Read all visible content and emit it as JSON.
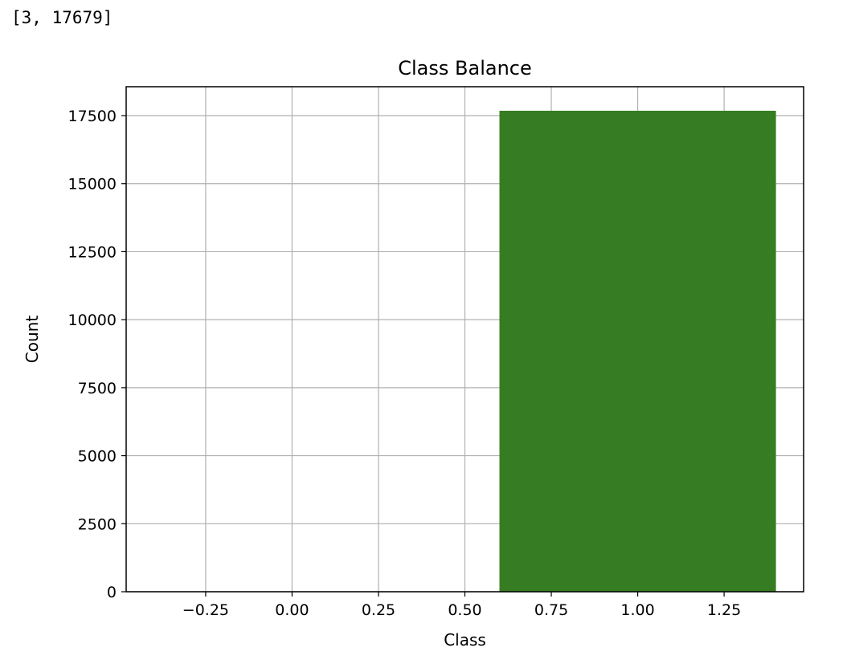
{
  "output": {
    "text": "[3, 17679]"
  },
  "chart_data": {
    "type": "bar",
    "title": "Class Balance",
    "xlabel": "Class",
    "ylabel": "Count",
    "x": [
      0,
      1
    ],
    "values": [
      3,
      17679
    ],
    "bar_width": 0.8,
    "bar_color": "#367c23",
    "xlim": [
      -0.48,
      1.48
    ],
    "ylim": [
      0,
      18563
    ],
    "xticks": [
      -0.25,
      0.0,
      0.25,
      0.5,
      0.75,
      1.0,
      1.25
    ],
    "xtick_labels": [
      "−0.25",
      "0.00",
      "0.25",
      "0.50",
      "0.75",
      "1.00",
      "1.25"
    ],
    "yticks": [
      0,
      2500,
      5000,
      7500,
      10000,
      12500,
      15000,
      17500
    ],
    "ytick_labels": [
      "0",
      "2500",
      "5000",
      "7500",
      "10000",
      "12500",
      "15000",
      "17500"
    ],
    "grid": true,
    "grid_color": "#b0b0b0",
    "legend": "none"
  }
}
